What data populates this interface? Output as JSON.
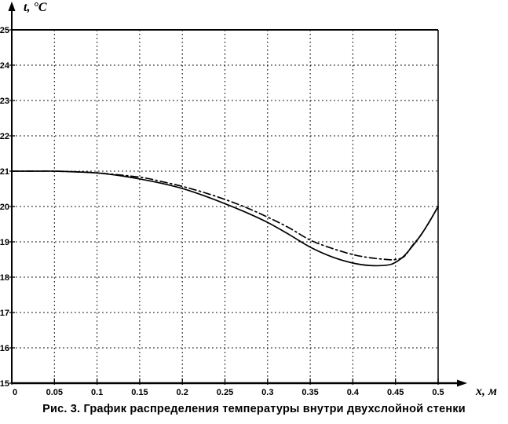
{
  "figure": {
    "caption": "Рис. 3. График распределения температуры внутри двухслойной стенки",
    "background": "#ffffff",
    "ink_color": "#000000"
  },
  "chart_data": {
    "type": "line",
    "title": "",
    "xlabel": "x, м",
    "ylabel": "t, °C",
    "xlim": [
      0,
      0.5
    ],
    "ylim": [
      15,
      25
    ],
    "x_ticks": [
      0,
      0.05,
      0.1,
      0.15,
      0.2,
      0.25,
      0.3,
      0.35,
      0.4,
      0.45,
      0.5
    ],
    "x_tick_labels": [
      "0",
      "0.05",
      "0.1",
      "0.15",
      "0.2",
      "0.25",
      "0.3",
      "0.35",
      "0.4",
      "0.45",
      "0.5"
    ],
    "y_ticks": [
      15,
      16,
      17,
      18,
      19,
      20,
      21,
      22,
      23,
      24,
      25
    ],
    "y_tick_labels": [
      "15",
      "16",
      "17",
      "18",
      "19",
      "20",
      "21",
      "22",
      "23",
      "24",
      "25"
    ],
    "grid": "dotted",
    "legend": "none",
    "series": [
      {
        "name": "solid-curve",
        "style": "solid",
        "x": [
          0,
          0.025,
          0.05,
          0.075,
          0.1,
          0.125,
          0.15,
          0.175,
          0.2,
          0.225,
          0.25,
          0.275,
          0.3,
          0.325,
          0.35,
          0.375,
          0.4,
          0.42,
          0.44,
          0.45,
          0.46,
          0.47,
          0.48,
          0.49,
          0.5
        ],
        "t": [
          21.0,
          21.0,
          21.0,
          20.98,
          20.95,
          20.88,
          20.78,
          20.66,
          20.51,
          20.31,
          20.08,
          19.83,
          19.55,
          19.21,
          18.85,
          18.58,
          18.4,
          18.33,
          18.34,
          18.42,
          18.6,
          18.88,
          19.2,
          19.58,
          20.0
        ]
      },
      {
        "name": "dash-dot-curve",
        "style": "dash-dot",
        "x": [
          0,
          0.05,
          0.1,
          0.15,
          0.175,
          0.2,
          0.225,
          0.25,
          0.275,
          0.3,
          0.325,
          0.35,
          0.375,
          0.4,
          0.42,
          0.44,
          0.45,
          0.46,
          0.47,
          0.48,
          0.49,
          0.5
        ],
        "t": [
          21.0,
          21.0,
          20.95,
          20.83,
          20.71,
          20.57,
          20.4,
          20.2,
          19.97,
          19.7,
          19.4,
          19.05,
          18.82,
          18.64,
          18.55,
          18.5,
          18.5,
          18.58,
          18.9,
          19.2,
          19.58,
          20.0
        ]
      }
    ]
  }
}
